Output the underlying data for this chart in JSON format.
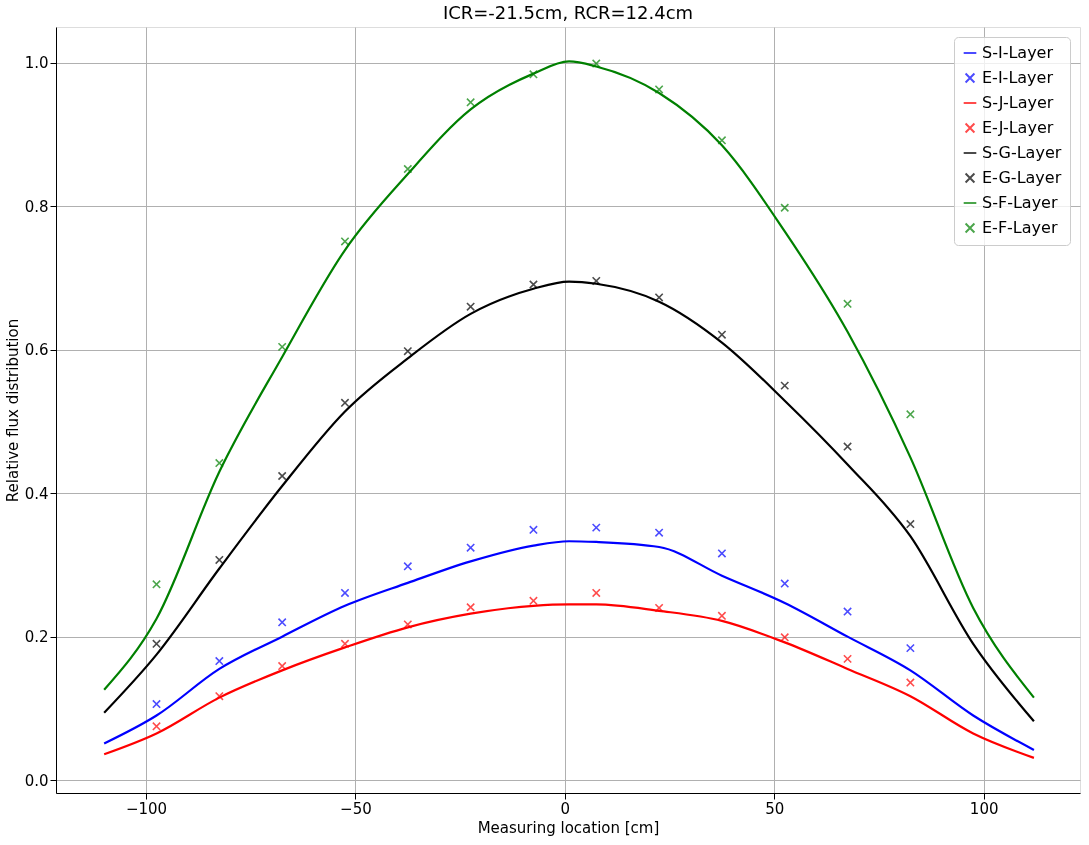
{
  "chart_data": {
    "type": "line",
    "title": "ICR=-21.5cm, RCR=12.4cm",
    "xlabel": "Measuring location [cm]",
    "ylabel": "Relative flux distribution",
    "xlim": [
      -121.5,
      123
    ],
    "ylim": [
      -0.018,
      1.05
    ],
    "xticks": [
      -100,
      -50,
      0,
      50,
      100
    ],
    "yticks": [
      {
        "value": 0,
        "label": "0.0"
      },
      0.2,
      0.4,
      0.6,
      0.8,
      {
        "value": 1,
        "label": "1.0"
      }
    ],
    "grid": true,
    "legend": "top right",
    "series": [
      {
        "name": "S-I-Layer",
        "type": "line",
        "color": "#0000ff",
        "x": [
          -110,
          -97.5,
          -82.5,
          -67.5,
          -52.5,
          -37.5,
          -22.5,
          -7.5,
          1,
          7.5,
          22.5,
          37.5,
          52.5,
          67.5,
          82.5,
          97.5,
          112
        ],
        "values": [
          0.051,
          0.09,
          0.155,
          0.2,
          0.243,
          0.275,
          0.305,
          0.327,
          0.333,
          0.332,
          0.325,
          0.285,
          0.247,
          0.2,
          0.153,
          0.09,
          0.042
        ]
      },
      {
        "name": "E-I-Layer",
        "type": "scatter",
        "marker": "cross",
        "color": "#0000ff",
        "x": [
          -97.5,
          -82.5,
          -67.5,
          -52.5,
          -37.5,
          -22.5,
          -7.5,
          7.5,
          22.5,
          37.5,
          52.5,
          67.5,
          82.5
        ],
        "values": [
          0.106,
          0.166,
          0.22,
          0.261,
          0.298,
          0.324,
          0.349,
          0.352,
          0.345,
          0.316,
          0.274,
          0.235,
          0.184
        ]
      },
      {
        "name": "S-J-Layer",
        "type": "line",
        "color": "#ff0000",
        "x": [
          -110,
          -97.5,
          -82.5,
          -67.5,
          -52.5,
          -37.5,
          -22.5,
          -7.5,
          1,
          7.5,
          22.5,
          37.5,
          52.5,
          67.5,
          82.5,
          97.5,
          112
        ],
        "values": [
          0.036,
          0.065,
          0.115,
          0.153,
          0.185,
          0.213,
          0.232,
          0.243,
          0.245,
          0.245,
          0.236,
          0.222,
          0.192,
          0.155,
          0.117,
          0.065,
          0.031
        ]
      },
      {
        "name": "E-J-Layer",
        "type": "scatter",
        "marker": "cross",
        "color": "#ff0000",
        "x": [
          -97.5,
          -82.5,
          -67.5,
          -52.5,
          -37.5,
          -22.5,
          -7.5,
          7.5,
          22.5,
          37.5,
          52.5,
          67.5,
          82.5
        ],
        "values": [
          0.075,
          0.117,
          0.159,
          0.19,
          0.217,
          0.241,
          0.25,
          0.261,
          0.24,
          0.229,
          0.199,
          0.169,
          0.136
        ]
      },
      {
        "name": "S-G-Layer",
        "type": "line",
        "color": "#000000",
        "x": [
          -110,
          -97.5,
          -82.5,
          -67.5,
          -52.5,
          -37.5,
          -22.5,
          -7.5,
          1,
          7.5,
          22.5,
          37.5,
          52.5,
          67.5,
          82.5,
          97.5,
          112
        ],
        "values": [
          0.094,
          0.175,
          0.295,
          0.41,
          0.514,
          0.588,
          0.65,
          0.685,
          0.695,
          0.692,
          0.667,
          0.61,
          0.529,
          0.44,
          0.34,
          0.19,
          0.082
        ]
      },
      {
        "name": "E-G-Layer",
        "type": "scatter",
        "marker": "cross",
        "color": "#000000",
        "x": [
          -97.5,
          -82.5,
          -67.5,
          -52.5,
          -37.5,
          -22.5,
          -7.5,
          7.5,
          22.5,
          37.5,
          52.5,
          67.5,
          82.5
        ],
        "values": [
          0.19,
          0.307,
          0.424,
          0.526,
          0.598,
          0.66,
          0.691,
          0.696,
          0.673,
          0.621,
          0.55,
          0.465,
          0.357
        ]
      },
      {
        "name": "S-F-Layer",
        "type": "line",
        "color": "#008000",
        "x": [
          -110,
          -97.5,
          -82.5,
          -67.5,
          -52.5,
          -37.5,
          -22.5,
          -7.5,
          1,
          7.5,
          22.5,
          37.5,
          52.5,
          67.5,
          82.5,
          97.5,
          112
        ],
        "values": [
          0.126,
          0.225,
          0.43,
          0.59,
          0.739,
          0.845,
          0.935,
          0.985,
          1.002,
          0.995,
          0.958,
          0.885,
          0.765,
          0.625,
          0.45,
          0.24,
          0.115
        ]
      },
      {
        "name": "E-F-Layer",
        "type": "scatter",
        "marker": "cross",
        "color": "#008000",
        "x": [
          -97.5,
          -82.5,
          -67.5,
          -52.5,
          -37.5,
          -22.5,
          -7.5,
          7.5,
          22.5,
          37.5,
          52.5,
          67.5,
          82.5
        ],
        "values": [
          0.273,
          0.442,
          0.604,
          0.751,
          0.852,
          0.945,
          0.984,
          0.999,
          0.963,
          0.892,
          0.798,
          0.664,
          0.51
        ]
      }
    ]
  }
}
